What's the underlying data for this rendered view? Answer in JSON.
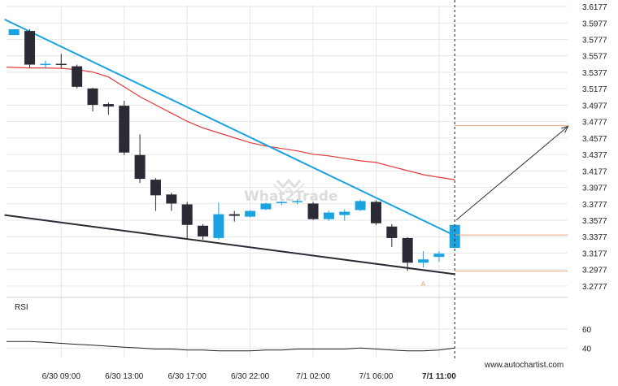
{
  "chart_data": {
    "type": "candlestick",
    "watermark": "What2Trade",
    "credit": "www.autochartist.com",
    "pattern_point_label": "A",
    "rsi_label": "RSI",
    "colors": {
      "bull": "#1ba3e1",
      "bear": "#2b2b35",
      "resistance": "#1ba3e1",
      "support": "#2b2b35",
      "ma": "#e33b3b",
      "level": "#f0a57a",
      "grid": "#e6e6e6",
      "rsi": "#222222",
      "label_a": "#f0a57a"
    },
    "price_axis": {
      "ticks": [
        "3.6177",
        "3.5977",
        "3.5777",
        "3.5577",
        "3.5377",
        "3.5177",
        "3.4977",
        "3.4777",
        "3.4577",
        "3.4377",
        "3.4177",
        "3.3977",
        "3.3777",
        "3.3577",
        "3.3377",
        "3.3177",
        "3.2977",
        "3.2777"
      ],
      "range": [
        3.2677,
        3.6197
      ]
    },
    "rsi_axis": {
      "ticks": [
        "60",
        "40"
      ],
      "range": [
        30,
        90
      ]
    },
    "time_axis": {
      "labels": [
        "6/30 09:00",
        "6/30 13:00",
        "6/30 17:00",
        "6/30 22:00",
        "7/1 02:00",
        "7/1 06:00",
        "7/1 11:00"
      ],
      "label_candle_index": [
        3,
        7,
        11,
        15,
        19,
        23,
        27
      ],
      "bold_last": true
    },
    "candles": [
      {
        "o": 3.583,
        "h": 3.59,
        "l": 3.583,
        "c": 3.59
      },
      {
        "o": 3.588,
        "h": 3.59,
        "l": 3.543,
        "c": 3.547
      },
      {
        "o": 3.548,
        "h": 3.552,
        "l": 3.542,
        "c": 3.548
      },
      {
        "o": 3.548,
        "h": 3.56,
        "l": 3.543,
        "c": 3.547
      },
      {
        "o": 3.545,
        "h": 3.547,
        "l": 3.518,
        "c": 3.52
      },
      {
        "o": 3.518,
        "h": 3.519,
        "l": 3.49,
        "c": 3.498
      },
      {
        "o": 3.499,
        "h": 3.501,
        "l": 3.486,
        "c": 3.496
      },
      {
        "o": 3.497,
        "h": 3.503,
        "l": 3.437,
        "c": 3.44
      },
      {
        "o": 3.437,
        "h": 3.462,
        "l": 3.403,
        "c": 3.408
      },
      {
        "o": 3.407,
        "h": 3.409,
        "l": 3.369,
        "c": 3.388
      },
      {
        "o": 3.389,
        "h": 3.391,
        "l": 3.369,
        "c": 3.378
      },
      {
        "o": 3.377,
        "h": 3.38,
        "l": 3.334,
        "c": 3.352
      },
      {
        "o": 3.351,
        "h": 3.353,
        "l": 3.334,
        "c": 3.338
      },
      {
        "o": 3.336,
        "h": 3.379,
        "l": 3.334,
        "c": 3.365
      },
      {
        "o": 3.365,
        "h": 3.369,
        "l": 3.356,
        "c": 3.363
      },
      {
        "o": 3.362,
        "h": 3.37,
        "l": 3.361,
        "c": 3.369
      },
      {
        "o": 3.371,
        "h": 3.379,
        "l": 3.37,
        "c": 3.378
      },
      {
        "o": 3.379,
        "h": 3.381,
        "l": 3.376,
        "c": 3.38
      },
      {
        "o": 3.38,
        "h": 3.383,
        "l": 3.377,
        "c": 3.381
      },
      {
        "o": 3.378,
        "h": 3.38,
        "l": 3.358,
        "c": 3.359
      },
      {
        "o": 3.359,
        "h": 3.369,
        "l": 3.357,
        "c": 3.367
      },
      {
        "o": 3.364,
        "h": 3.371,
        "l": 3.357,
        "c": 3.368
      },
      {
        "o": 3.37,
        "h": 3.383,
        "l": 3.369,
        "c": 3.381
      },
      {
        "o": 3.38,
        "h": 3.382,
        "l": 3.352,
        "c": 3.354
      },
      {
        "o": 3.35,
        "h": 3.353,
        "l": 3.325,
        "c": 3.336
      },
      {
        "o": 3.336,
        "h": 3.337,
        "l": 3.296,
        "c": 3.306
      },
      {
        "o": 3.306,
        "h": 3.32,
        "l": 3.3,
        "c": 3.31
      },
      {
        "o": 3.313,
        "h": 3.32,
        "l": 3.307,
        "c": 3.317
      },
      {
        "o": 3.324,
        "h": 3.352,
        "l": 3.324,
        "c": 3.352
      }
    ],
    "moving_average": [
      3.544,
      3.543,
      3.543,
      3.5425,
      3.541,
      3.538,
      3.532,
      3.52,
      3.508,
      3.498,
      3.488,
      3.478,
      3.47,
      3.464,
      3.458,
      3.452,
      3.448,
      3.445,
      3.442,
      3.438,
      3.436,
      3.433,
      3.43,
      3.428,
      3.423,
      3.418,
      3.413,
      3.41,
      3.407
    ],
    "resistance_line": {
      "from": {
        "i": -0.6,
        "p": 3.602
      },
      "to": {
        "i": 28.0,
        "p": 3.339
      }
    },
    "support_line": {
      "from": {
        "i": -0.6,
        "p": 3.364
      },
      "to": {
        "i": 28.0,
        "p": 3.292
      }
    },
    "forecast_levels": [
      3.4727,
      3.3397,
      3.2957
    ],
    "forecast_arrow": {
      "from": {
        "i": 28.1,
        "p": 3.358
      },
      "to": {
        "i": 35.2,
        "p": 3.472
      }
    },
    "point_a": {
      "i": 26.0,
      "p": 3.289
    },
    "vertical_marker_index": 28,
    "rsi": [
      47,
      47,
      46,
      45,
      44,
      43,
      42,
      41,
      40,
      39,
      39,
      38,
      38,
      37,
      37,
      37,
      38,
      38,
      39,
      39,
      39,
      39,
      40,
      39,
      38,
      37,
      37,
      38,
      40
    ]
  }
}
